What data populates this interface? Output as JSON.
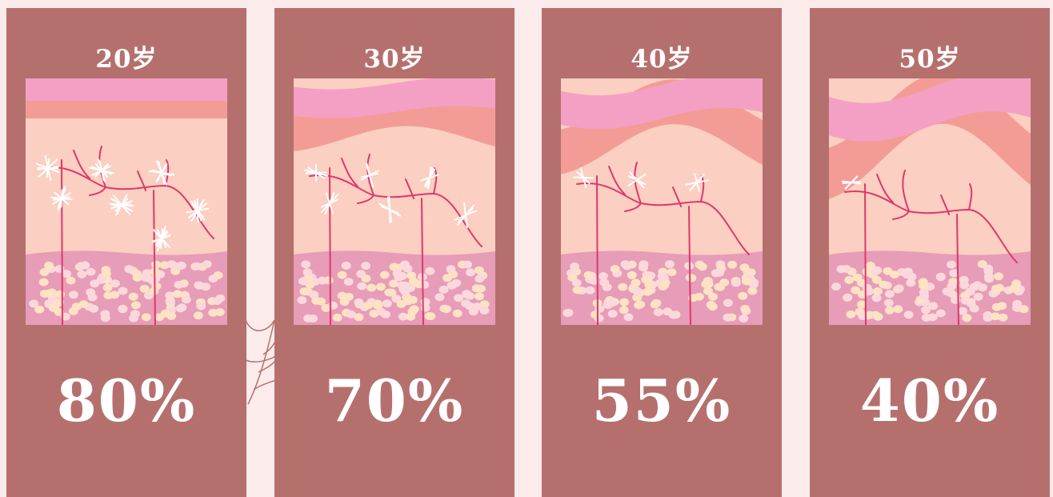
{
  "colors": {
    "background": "#fbeceb",
    "panel": "#b5706e",
    "epidermis_top": "#f4a0c4",
    "epidermis_mid": "#f39c96",
    "dermis": "#fbcfc1",
    "fat_layer": "#e79cb8",
    "fat_cell_light": "#fbd8dc",
    "fat_cell_cream": "#fde2c4",
    "vessel": "#e0386a",
    "collagen": "#ffffff"
  },
  "stages": [
    {
      "age": "20岁",
      "percent": "80%",
      "wave": 0,
      "fibers": 7,
      "fiber_density": 8
    },
    {
      "age": "30岁",
      "percent": "70%",
      "wave": 1,
      "fibers": 6,
      "fiber_density": 4
    },
    {
      "age": "40岁",
      "percent": "55%",
      "wave": 2,
      "fibers": 3,
      "fiber_density": 3
    },
    {
      "age": "50岁",
      "percent": "40%",
      "wave": 3,
      "fibers": 1,
      "fiber_density": 3
    }
  ]
}
